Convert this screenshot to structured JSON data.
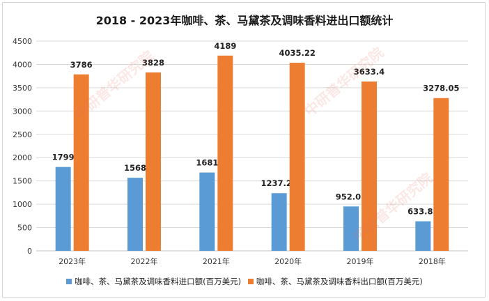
{
  "chart_data": {
    "type": "bar",
    "title": "2018 - 2023年咖啡、茶、马黛茶及调味香料进出口额统计",
    "categories": [
      "2023年",
      "2022年",
      "2021年",
      "2020年",
      "2019年",
      "2018年"
    ],
    "series": [
      {
        "name": "咖啡、茶、马黛茶及调味香料进口额(百万美元)",
        "color": "#5b9bd5",
        "values": [
          1799,
          1568,
          1681,
          1237.23,
          952.08,
          633.85
        ],
        "labels": [
          "1799",
          "1568",
          "1681",
          "1237.23",
          "952.08",
          "633.85"
        ]
      },
      {
        "name": "咖啡、茶、马黛茶及调味香料出口额(百万美元)",
        "color": "#ed7d31",
        "values": [
          3786,
          3828,
          4189,
          4035.22,
          3633.4,
          3278.05
        ],
        "labels": [
          "3786",
          "3828",
          "4189",
          "4035.22",
          "3633.4",
          "3278.05"
        ]
      }
    ],
    "ylim": [
      0,
      4500
    ],
    "yticks": [
      "0",
      "500",
      "1000",
      "1500",
      "2000",
      "2500",
      "3000",
      "3500",
      "4000",
      "4500"
    ],
    "grid": true,
    "legend_position": "bottom"
  },
  "watermark": {
    "text": "中研普华研究院",
    "url": "www.ChinaIRN.COM",
    "logo": "CIRN"
  }
}
